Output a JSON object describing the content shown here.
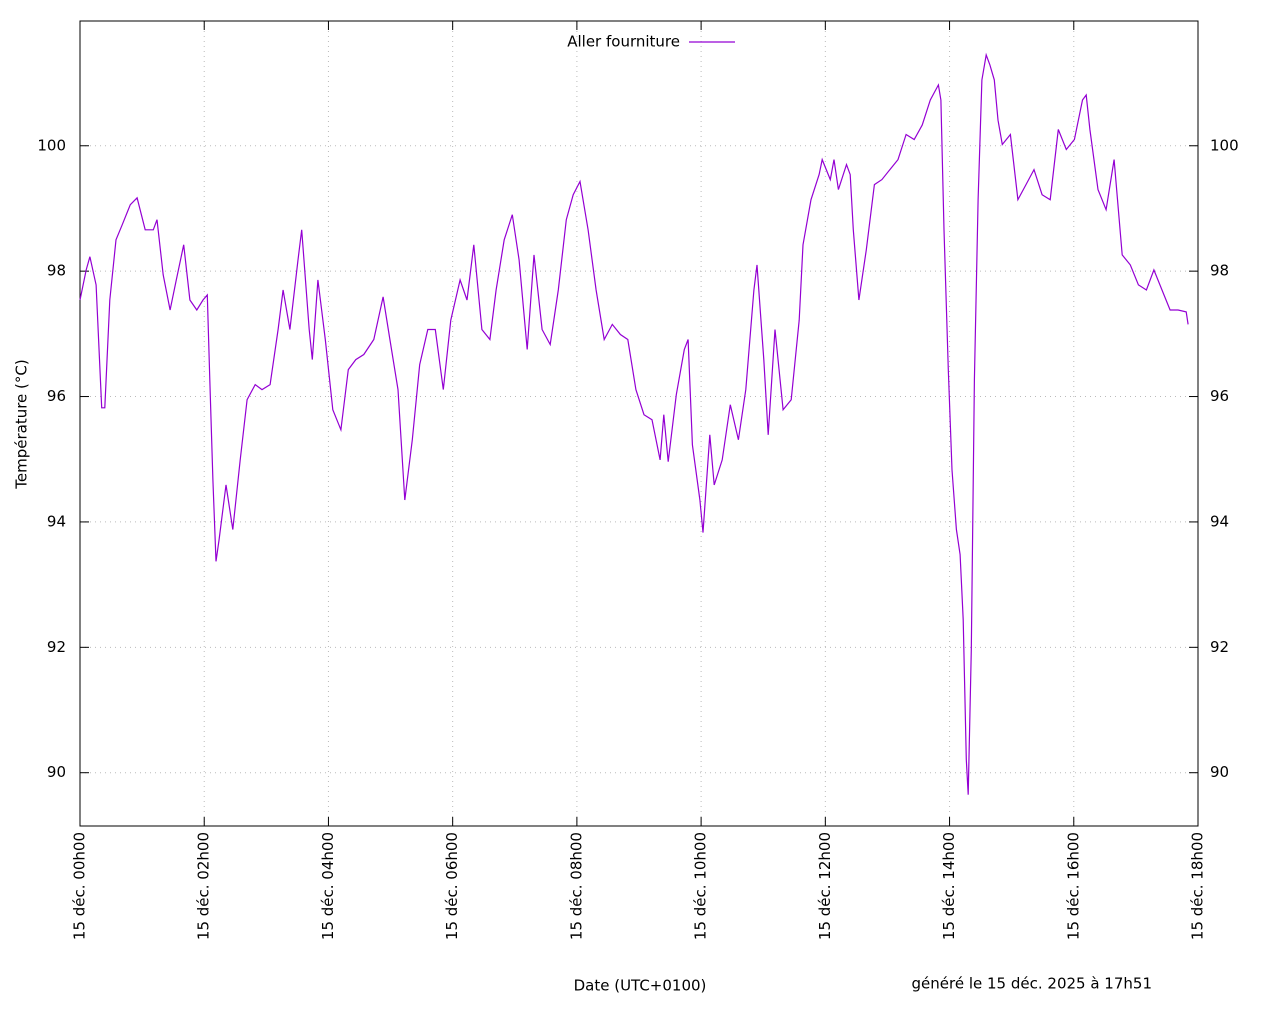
{
  "chart_data": {
    "type": "line",
    "xlabel": "Date (UTC+0100)",
    "ylabel": "Température (°C)",
    "footer": "généré le 15 déc. 2025 à 17h51",
    "x": [
      0,
      0.1,
      0.16,
      0.26,
      0.35,
      0.4,
      0.48,
      0.58,
      0.68,
      0.81,
      0.92,
      1.05,
      1.18,
      1.24,
      1.34,
      1.45,
      1.55,
      1.67,
      1.77,
      1.88,
      1.98,
      2.05,
      2.09,
      2.14,
      2.19,
      2.24,
      2.35,
      2.46,
      2.58,
      2.69,
      2.82,
      2.93,
      3.06,
      3.19,
      3.27,
      3.38,
      3.51,
      3.57,
      3.69,
      3.74,
      3.83,
      3.95,
      4.07,
      4.2,
      4.32,
      4.44,
      4.57,
      4.73,
      4.88,
      4.99,
      5.12,
      5.23,
      5.35,
      5.47,
      5.6,
      5.72,
      5.85,
      5.97,
      6.12,
      6.23,
      6.34,
      6.47,
      6.6,
      6.7,
      6.83,
      6.96,
      7.07,
      7.2,
      7.31,
      7.44,
      7.57,
      7.7,
      7.83,
      7.94,
      8.05,
      8.18,
      8.31,
      8.44,
      8.57,
      8.7,
      8.82,
      8.95,
      9.08,
      9.21,
      9.34,
      9.4,
      9.47,
      9.6,
      9.73,
      9.79,
      9.86,
      9.98,
      10.03,
      10.14,
      10.21,
      10.34,
      10.47,
      10.6,
      10.72,
      10.85,
      10.9,
      11.01,
      11.08,
      11.19,
      11.32,
      11.45,
      11.58,
      11.64,
      11.77,
      11.9,
      11.95,
      12.08,
      12.14,
      12.21,
      12.34,
      12.4,
      12.45,
      12.54,
      12.66,
      12.79,
      12.91,
      13.04,
      13.17,
      13.3,
      13.43,
      13.56,
      13.69,
      13.82,
      13.86,
      13.91,
      13.98,
      14.04,
      14.11,
      14.17,
      14.22,
      14.27,
      14.3,
      14.35,
      14.4,
      14.46,
      14.52,
      14.59,
      14.65,
      14.72,
      14.78,
      14.85,
      14.98,
      15.1,
      15.23,
      15.36,
      15.49,
      15.62,
      15.75,
      15.88,
      16.01,
      16.14,
      16.2,
      16.26,
      16.39,
      16.52,
      16.65,
      16.78,
      16.91,
      17.04,
      17.17,
      17.29,
      17.42,
      17.55,
      17.68,
      17.81,
      17.84
    ],
    "series": [
      {
        "name": "Aller fourniture",
        "color": "#9400d3",
        "values": [
          97.54,
          98.02,
          98.23,
          97.78,
          95.82,
          95.82,
          97.54,
          98.5,
          98.74,
          99.06,
          99.17,
          98.66,
          98.66,
          98.82,
          97.94,
          97.38,
          97.86,
          98.42,
          97.54,
          97.38,
          97.54,
          97.62,
          96.27,
          94.67,
          93.37,
          93.72,
          94.59,
          93.88,
          94.99,
          95.95,
          96.19,
          96.11,
          96.19,
          97.07,
          97.7,
          97.07,
          98.18,
          98.66,
          97.07,
          96.59,
          97.86,
          96.91,
          95.79,
          95.47,
          96.43,
          96.59,
          96.67,
          96.91,
          97.59,
          96.91,
          96.11,
          94.35,
          95.31,
          96.51,
          97.07,
          97.07,
          96.11,
          97.22,
          97.86,
          97.54,
          98.42,
          97.07,
          96.91,
          97.7,
          98.5,
          98.9,
          98.18,
          96.75,
          98.26,
          97.07,
          96.83,
          97.7,
          98.82,
          99.22,
          99.43,
          98.66,
          97.7,
          96.91,
          97.15,
          96.99,
          96.91,
          96.11,
          95.71,
          95.63,
          94.99,
          95.71,
          94.96,
          96.03,
          96.75,
          96.91,
          95.23,
          94.35,
          93.83,
          95.39,
          94.59,
          94.99,
          95.87,
          95.31,
          96.11,
          97.7,
          98.1,
          96.59,
          95.39,
          97.07,
          95.79,
          95.95,
          97.22,
          98.42,
          99.14,
          99.54,
          99.78,
          99.46,
          99.78,
          99.3,
          99.7,
          99.54,
          98.66,
          97.54,
          98.34,
          99.38,
          99.46,
          99.62,
          99.78,
          100.18,
          100.1,
          100.33,
          100.73,
          100.97,
          100.73,
          98.66,
          96.43,
          94.83,
          93.88,
          93.48,
          92.44,
          90.21,
          89.65,
          91.96,
          96.27,
          99.14,
          101.05,
          101.45,
          101.29,
          101.05,
          100.41,
          100.02,
          100.18,
          99.14,
          99.38,
          99.62,
          99.22,
          99.14,
          100.26,
          99.94,
          100.1,
          100.73,
          100.81,
          100.26,
          99.3,
          98.98,
          99.78,
          98.26,
          98.1,
          97.78,
          97.7,
          98.02,
          97.7,
          97.38,
          97.38,
          97.35,
          97.15
        ]
      }
    ],
    "xlim": [
      0,
      18
    ],
    "xticks": [
      {
        "value": 0,
        "label": "15 déc. 00h00"
      },
      {
        "value": 2,
        "label": "15 déc. 02h00"
      },
      {
        "value": 4,
        "label": "15 déc. 04h00"
      },
      {
        "value": 6,
        "label": "15 déc. 06h00"
      },
      {
        "value": 8,
        "label": "15 déc. 08h00"
      },
      {
        "value": 10,
        "label": "15 déc. 10h00"
      },
      {
        "value": 12,
        "label": "15 déc. 12h00"
      },
      {
        "value": 14,
        "label": "15 déc. 14h00"
      },
      {
        "value": 16,
        "label": "15 déc. 16h00"
      },
      {
        "value": 18,
        "label": "15 déc. 18h00"
      }
    ],
    "ylim": [
      89.15,
      101.99
    ],
    "yticks": [
      90,
      92,
      94,
      96,
      98,
      100
    ],
    "grid": true,
    "legend": "top"
  }
}
